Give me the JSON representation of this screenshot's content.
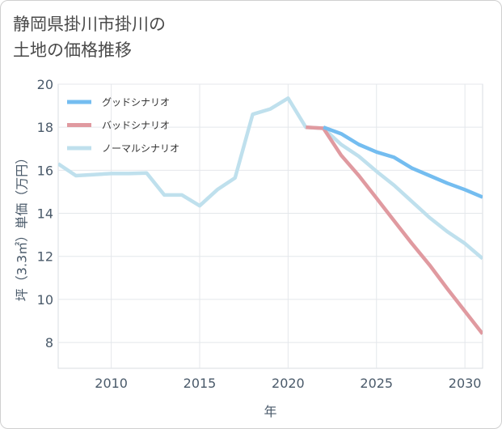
{
  "title_line1": "静岡県掛川市掛川の",
  "title_line2": "土地の価格推移",
  "chart_data": {
    "type": "line",
    "xlabel": "年",
    "ylabel": "坪（3.3㎡）単価（万円）",
    "xlim": [
      2007,
      2031
    ],
    "ylim": [
      6.8,
      20
    ],
    "x_ticks": [
      2010,
      2015,
      2020,
      2025,
      2030
    ],
    "y_ticks": [
      8,
      10,
      12,
      14,
      16,
      18,
      20
    ],
    "grid": true,
    "legend_position": "top-left",
    "series": [
      {
        "name": "グッドシナリオ",
        "color": "#74bdf0",
        "x": [
          2022,
          2023,
          2024,
          2025,
          2026,
          2027,
          2028,
          2029,
          2030,
          2031
        ],
        "y": [
          18.0,
          17.7,
          17.2,
          16.85,
          16.6,
          16.1,
          15.75,
          15.4,
          15.1,
          14.75
        ]
      },
      {
        "name": "バッドシナリオ",
        "color": "#e09aa0",
        "x": [
          2021,
          2022,
          2023,
          2024,
          2025,
          2026,
          2027,
          2028,
          2029,
          2030,
          2031
        ],
        "y": [
          18.0,
          17.95,
          16.7,
          15.75,
          14.7,
          13.65,
          12.6,
          11.6,
          10.5,
          9.45,
          8.4
        ]
      },
      {
        "name": "ノーマルシナリオ",
        "color": "#bfe0ed",
        "x": [
          2007,
          2008,
          2009,
          2010,
          2011,
          2012,
          2013,
          2014,
          2015,
          2016,
          2017,
          2018,
          2019,
          2020,
          2021,
          2022,
          2023,
          2024,
          2025,
          2026,
          2027,
          2028,
          2029,
          2030,
          2031
        ],
        "y": [
          16.3,
          15.75,
          15.8,
          15.85,
          15.85,
          15.87,
          14.85,
          14.85,
          14.35,
          15.1,
          15.65,
          18.6,
          18.85,
          19.35,
          18.0,
          17.95,
          17.2,
          16.65,
          15.95,
          15.3,
          14.55,
          13.8,
          13.15,
          12.6,
          11.9
        ]
      }
    ]
  }
}
